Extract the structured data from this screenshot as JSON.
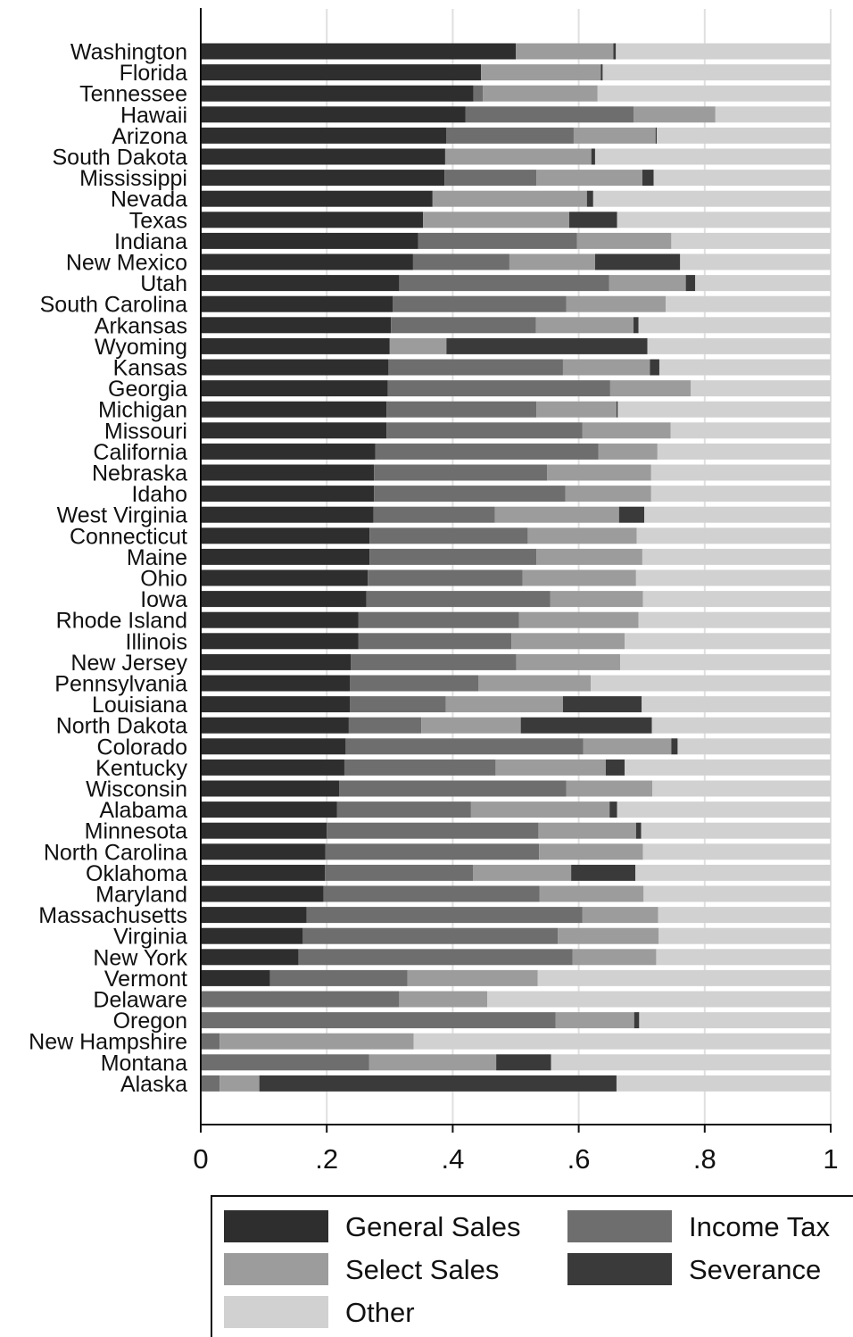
{
  "chart_data": {
    "type": "bar",
    "orientation": "horizontal",
    "stacked": true,
    "title": "",
    "xlabel": "",
    "ylabel": "",
    "xlim": [
      0,
      1
    ],
    "x_ticks": [
      0,
      0.2,
      0.4,
      0.6,
      0.8,
      1
    ],
    "x_tick_labels": [
      "0",
      ".2",
      ".4",
      ".6",
      ".8",
      "1"
    ],
    "grid": "vertical",
    "legend_position": "bottom",
    "categories": [
      "Washington",
      "Florida",
      "Tennessee",
      "Hawaii",
      "Arizona",
      "South Dakota",
      "Mississippi",
      "Nevada",
      "Texas",
      "Indiana",
      "New Mexico",
      "Utah",
      "South Carolina",
      "Arkansas",
      "Wyoming",
      "Kansas",
      "Georgia",
      "Michigan",
      "Missouri",
      "California",
      "Nebraska",
      "Idaho",
      "West Virginia",
      "Connecticut",
      "Maine",
      "Ohio",
      "Iowa",
      "Rhode Island",
      "Illinois",
      "New Jersey",
      "Pennsylvania",
      "Louisiana",
      "North Dakota",
      "Colorado",
      "Kentucky",
      "Wisconsin",
      "Alabama",
      "Minnesota",
      "North Carolina",
      "Oklahoma",
      "Maryland",
      "Massachusetts",
      "Virginia",
      "New York",
      "Vermont",
      "Delaware",
      "Oregon",
      "New Hampshire",
      "Montana",
      "Alaska"
    ],
    "series": [
      {
        "name": "General Sales",
        "color": "#2e2e2e",
        "values": [
          0.5,
          0.445,
          0.433,
          0.42,
          0.39,
          0.388,
          0.387,
          0.368,
          0.353,
          0.345,
          0.337,
          0.315,
          0.305,
          0.302,
          0.3,
          0.298,
          0.297,
          0.295,
          0.295,
          0.277,
          0.275,
          0.275,
          0.274,
          0.268,
          0.268,
          0.265,
          0.263,
          0.25,
          0.25,
          0.238,
          0.237,
          0.237,
          0.235,
          0.23,
          0.228,
          0.22,
          0.216,
          0.2,
          0.198,
          0.197,
          0.195,
          0.168,
          0.162,
          0.155,
          0.11,
          0,
          0,
          0,
          0,
          0
        ]
      },
      {
        "name": "Income Tax",
        "color": "#6e6e6e",
        "values": [
          0,
          0,
          0.015,
          0.267,
          0.202,
          0,
          0.146,
          0,
          0,
          0.252,
          0.153,
          0.333,
          0.275,
          0.23,
          0,
          0.277,
          0.353,
          0.238,
          0.311,
          0.354,
          0.275,
          0.304,
          0.193,
          0.251,
          0.265,
          0.246,
          0.292,
          0.255,
          0.243,
          0.263,
          0.204,
          0.152,
          0.115,
          0.377,
          0.24,
          0.36,
          0.213,
          0.336,
          0.339,
          0.235,
          0.343,
          0.438,
          0.405,
          0.435,
          0.218,
          0.315,
          0.563,
          0.03,
          0.267,
          0.03
        ]
      },
      {
        "name": "Select Sales",
        "color": "#9c9c9c",
        "values": [
          0.155,
          0.19,
          0.182,
          0.13,
          0.13,
          0.232,
          0.168,
          0.245,
          0.232,
          0.15,
          0.136,
          0.122,
          0.158,
          0.155,
          0.09,
          0.138,
          0.128,
          0.127,
          0.14,
          0.094,
          0.165,
          0.136,
          0.197,
          0.173,
          0.168,
          0.18,
          0.147,
          0.19,
          0.18,
          0.165,
          0.178,
          0.186,
          0.158,
          0.14,
          0.175,
          0.137,
          0.22,
          0.155,
          0.165,
          0.156,
          0.165,
          0.12,
          0.16,
          0.133,
          0.207,
          0.14,
          0.125,
          0.308,
          0.202,
          0.063
        ]
      },
      {
        "name": "Severance",
        "color": "#3a3a3a",
        "values": [
          0.004,
          0.003,
          0,
          0,
          0.002,
          0.006,
          0.018,
          0.01,
          0.076,
          0,
          0.135,
          0.015,
          0,
          0.008,
          0.319,
          0.015,
          0,
          0.002,
          0,
          0,
          0,
          0,
          0.04,
          0,
          0,
          0,
          0,
          0,
          0,
          0,
          0,
          0.125,
          0.208,
          0.01,
          0.03,
          0,
          0.012,
          0.008,
          0,
          0.102,
          0,
          0,
          0,
          0,
          0,
          0,
          0.008,
          0,
          0.087,
          0.567
        ]
      },
      {
        "name": "Other",
        "color": "#d1d1d1",
        "values": [
          0.341,
          0.362,
          0.37,
          0.183,
          0.276,
          0.374,
          0.281,
          0.377,
          0.339,
          0.253,
          0.239,
          0.215,
          0.262,
          0.305,
          0.291,
          0.272,
          0.222,
          0.338,
          0.254,
          0.275,
          0.285,
          0.285,
          0.296,
          0.308,
          0.299,
          0.309,
          0.298,
          0.305,
          0.327,
          0.334,
          0.381,
          0.3,
          0.284,
          0.243,
          0.327,
          0.283,
          0.339,
          0.301,
          0.298,
          0.31,
          0.297,
          0.274,
          0.273,
          0.277,
          0.465,
          0.545,
          0.304,
          0.662,
          0.444,
          0.34
        ]
      }
    ]
  },
  "legend": {
    "items": [
      {
        "label": "General Sales",
        "color": "#2e2e2e"
      },
      {
        "label": "Income Tax",
        "color": "#6e6e6e"
      },
      {
        "label": "Select Sales",
        "color": "#9c9c9c"
      },
      {
        "label": "Severance",
        "color": "#3a3a3a"
      },
      {
        "label": "Other",
        "color": "#d1d1d1"
      }
    ]
  }
}
